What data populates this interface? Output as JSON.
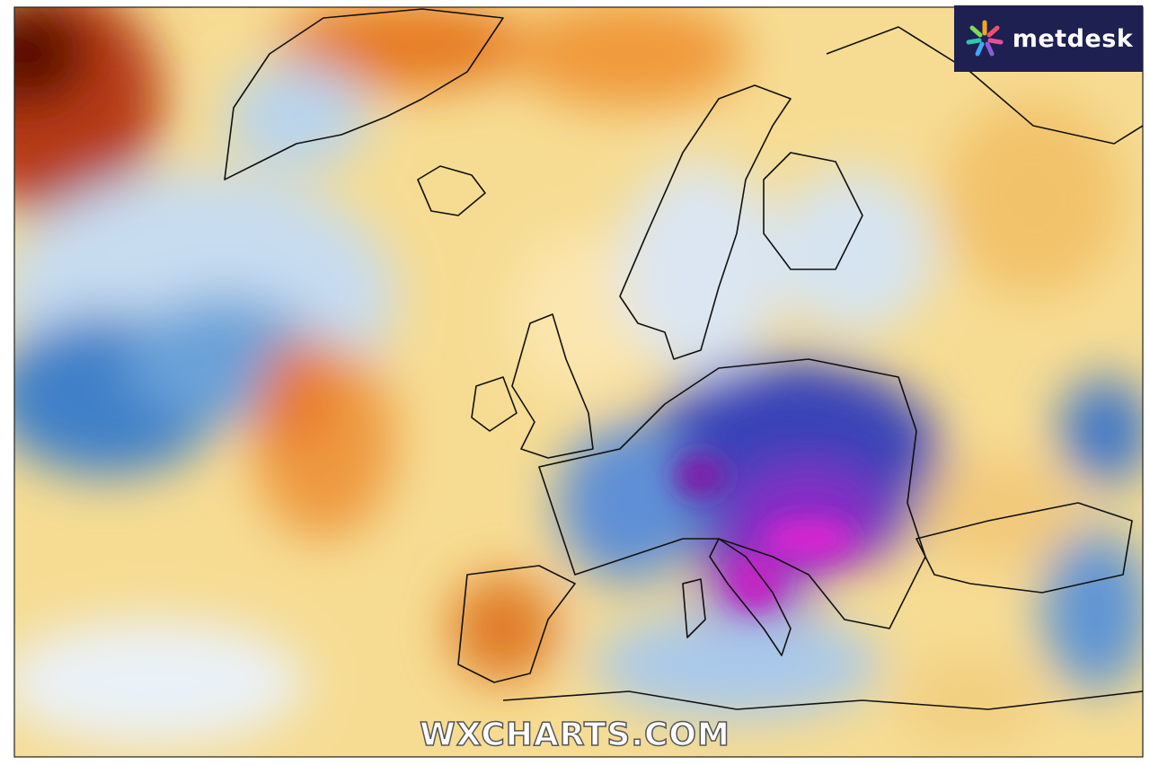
{
  "logo": {
    "text": "metdesk"
  },
  "watermark": "WXCHARTS.COM"
}
